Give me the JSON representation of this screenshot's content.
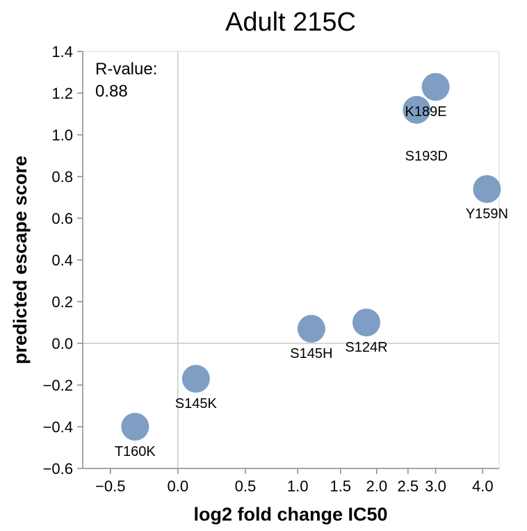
{
  "chart_data": {
    "type": "scatter",
    "title": "Adult 215C",
    "xlabel": "log2 fold change IC50",
    "ylabel": "predicted escape score",
    "x_ticks": [
      {
        "value": -0.5,
        "label": "−0.5"
      },
      {
        "value": 0.0,
        "label": "0.0"
      },
      {
        "value": 0.5,
        "label": "0.5"
      },
      {
        "value": 1.0,
        "label": "1.0"
      },
      {
        "value": 1.5,
        "label": "1.5"
      },
      {
        "value": 2.0,
        "label": "2.0"
      },
      {
        "value": 2.5,
        "label": "2.5"
      },
      {
        "value": 3.0,
        "label": "3.0"
      },
      {
        "value": 4.0,
        "label": "4.0"
      }
    ],
    "y_ticks": [
      {
        "value": -0.6,
        "label": "−0.6"
      },
      {
        "value": -0.4,
        "label": "−0.4"
      },
      {
        "value": -0.2,
        "label": "−0.2"
      },
      {
        "value": 0.0,
        "label": "0.0"
      },
      {
        "value": 0.2,
        "label": "0.2"
      },
      {
        "value": 0.4,
        "label": "0.4"
      },
      {
        "value": 0.6,
        "label": "0.6"
      },
      {
        "value": 0.8,
        "label": "0.8"
      },
      {
        "value": 1.0,
        "label": "1.0"
      },
      {
        "value": 1.2,
        "label": "1.2"
      },
      {
        "value": 1.4,
        "label": "1.4"
      }
    ],
    "ylim": [
      -0.6,
      1.4
    ],
    "x_scale": "symlog",
    "zero_lines": true,
    "points": [
      {
        "label": "T160K",
        "x": -0.3,
        "y": -0.4
      },
      {
        "label": "S145K",
        "x": 0.12,
        "y": -0.17
      },
      {
        "label": "S145H",
        "x": 1.15,
        "y": 0.07
      },
      {
        "label": "S124R",
        "x": 1.85,
        "y": 0.1
      },
      {
        "label": "S193D",
        "x": 2.65,
        "y": 1.12
      },
      {
        "label": "K189E",
        "x": 3.0,
        "y": 1.23
      },
      {
        "label": "Y159N",
        "x": 4.1,
        "y": 0.74
      }
    ],
    "point_color": "#7e9ec3",
    "annotation": {
      "line1": "R-value:",
      "line2": "0.88"
    }
  }
}
